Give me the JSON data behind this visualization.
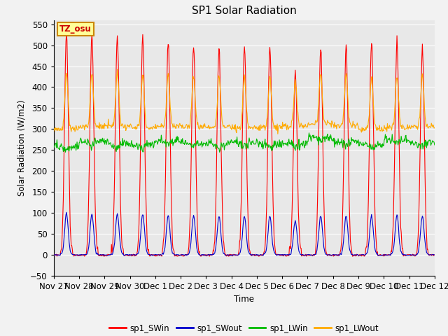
{
  "title": "SP1 Solar Radiation",
  "ylabel": "Solar Radiation (W/m2)",
  "xlabel": "Time",
  "ylim": [
    -50,
    560
  ],
  "yticks": [
    -50,
    0,
    50,
    100,
    150,
    200,
    250,
    300,
    350,
    400,
    450,
    500,
    550
  ],
  "xtick_labels": [
    "Nov 27",
    "Nov 28",
    "Nov 29",
    "Nov 30",
    "Dec 1",
    "Dec 2",
    "Dec 3",
    "Dec 4",
    "Dec 5",
    "Dec 6",
    "Dec 7",
    "Dec 8",
    "Dec 9",
    "Dec 10",
    "Dec 11",
    "Dec 12"
  ],
  "annotation_text": "TZ_osu",
  "annotation_color": "#cc0000",
  "annotation_bg": "#ffff99",
  "annotation_border": "#cc8800",
  "colors": {
    "sp1_SWin": "#ff0000",
    "sp1_SWout": "#0000cc",
    "sp1_LWin": "#00bb00",
    "sp1_LWout": "#ffaa00"
  },
  "background_color": "#e8e8e8",
  "grid_color": "#ffffff",
  "sw_peaks": [
    530,
    525,
    525,
    520,
    505,
    500,
    495,
    500,
    495,
    435,
    495,
    500,
    505,
    510,
    495
  ],
  "lw_in_base": [
    258,
    272,
    265,
    263,
    272,
    268,
    265,
    268,
    265,
    265,
    280,
    272,
    262,
    275,
    268
  ],
  "lw_out_base": [
    300,
    305,
    308,
    303,
    307,
    305,
    305,
    303,
    303,
    307,
    312,
    308,
    300,
    303,
    305
  ]
}
